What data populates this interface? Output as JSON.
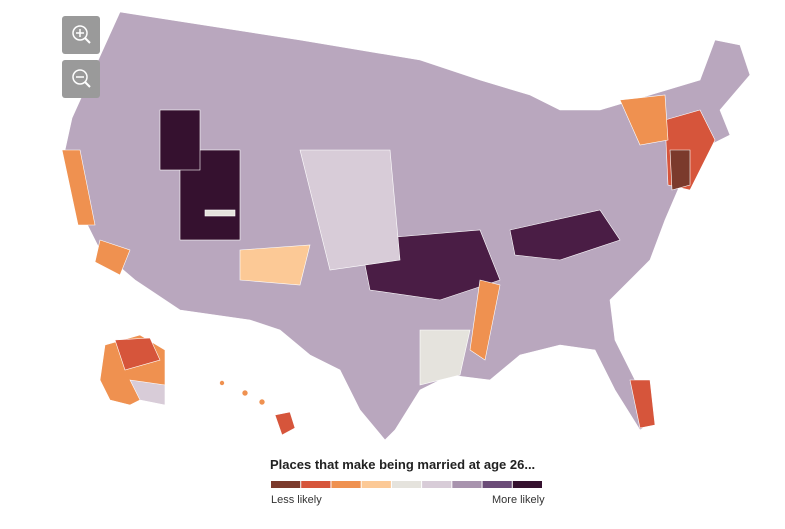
{
  "legend": {
    "title": "Places that make being married at age 26...",
    "low_label": "Less likely",
    "high_label": "More likely",
    "colors": [
      "#7b3a2c",
      "#d6553b",
      "#ef9150",
      "#fcc996",
      "#e5e3dd",
      "#d8ccd8",
      "#a893ae",
      "#6b4c78",
      "#35112f"
    ]
  }
}
